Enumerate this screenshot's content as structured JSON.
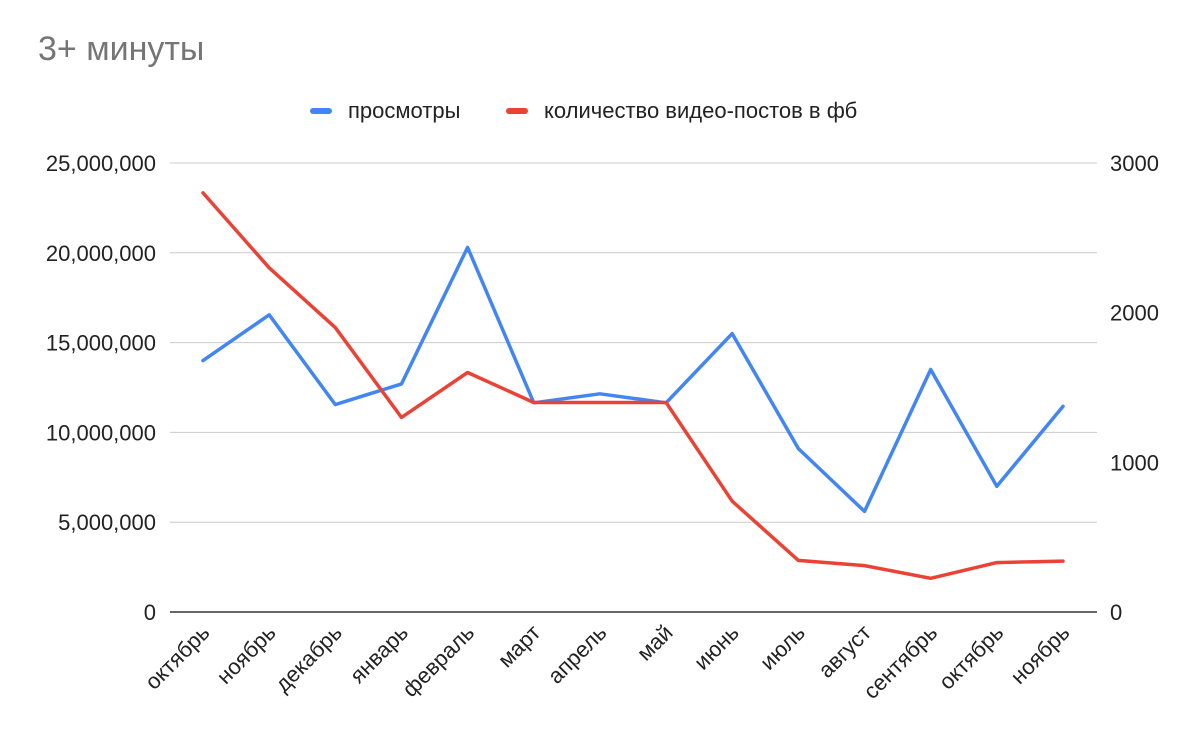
{
  "chart_data": {
    "type": "line",
    "title": "3+ минуты",
    "xlabel": "",
    "ylabel": "",
    "categories": [
      "октябрь",
      "ноябрь",
      "декабрь",
      "январь",
      "февраль",
      "март",
      "апрель",
      "май",
      "июнь",
      "июль",
      "август",
      "сентябрь",
      "октябрь",
      "ноябрь"
    ],
    "series": [
      {
        "name": "просмотры",
        "axis": "left",
        "color": "#4285f4",
        "values": [
          14000000,
          16550000,
          11550000,
          12700000,
          20300000,
          11650000,
          12150000,
          11650000,
          15500000,
          9100000,
          5600000,
          13500000,
          7000000,
          11450000
        ]
      },
      {
        "name": "количество видео-постов в фб",
        "axis": "right",
        "color": "#ea4335",
        "values": [
          2800,
          2300,
          1900,
          1300,
          1600,
          1400,
          1400,
          1400,
          740,
          345,
          310,
          225,
          330,
          340
        ]
      }
    ],
    "ylim_left": [
      0,
      25000000
    ],
    "yticks_left": [
      "0",
      "5,000,000",
      "10,000,000",
      "15,000,000",
      "20,000,000",
      "25,000,000"
    ],
    "ylim_right": [
      0,
      3000
    ],
    "yticks_right": [
      "0",
      "1000",
      "2000",
      "3000"
    ],
    "grid": true,
    "legend_position": "top"
  }
}
